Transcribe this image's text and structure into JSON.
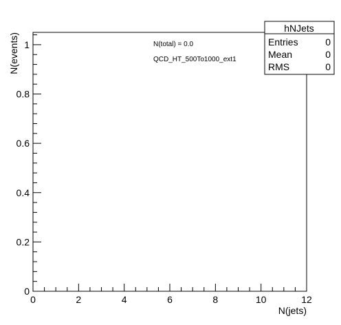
{
  "chart_data": {
    "type": "bar",
    "title": "",
    "xlabel": "N(jets)",
    "ylabel": "N(events)",
    "xlim": [
      0,
      12
    ],
    "ylim": [
      0,
      1.05
    ],
    "x_ticks": [
      "0",
      "2",
      "4",
      "6",
      "8",
      "10",
      "12"
    ],
    "y_ticks": [
      "0",
      "0.2",
      "0.4",
      "0.6",
      "0.8",
      "1"
    ],
    "x_tick_values": [
      0,
      2,
      4,
      6,
      8,
      10,
      12
    ],
    "y_tick_values": [
      0,
      0.2,
      0.4,
      0.6,
      0.8,
      1.0
    ],
    "categories": [],
    "values": [],
    "grid": false,
    "legend": "none",
    "annotations": [
      "N(total) = 0.0",
      "QCD_HT_500To1000_ext1"
    ]
  },
  "stats_box": {
    "title": "hNJets",
    "rows": [
      {
        "label": "Entries",
        "value": "0"
      },
      {
        "label": "Mean",
        "value": "0"
      },
      {
        "label": "RMS",
        "value": "0"
      }
    ],
    "placement": "top-right"
  }
}
